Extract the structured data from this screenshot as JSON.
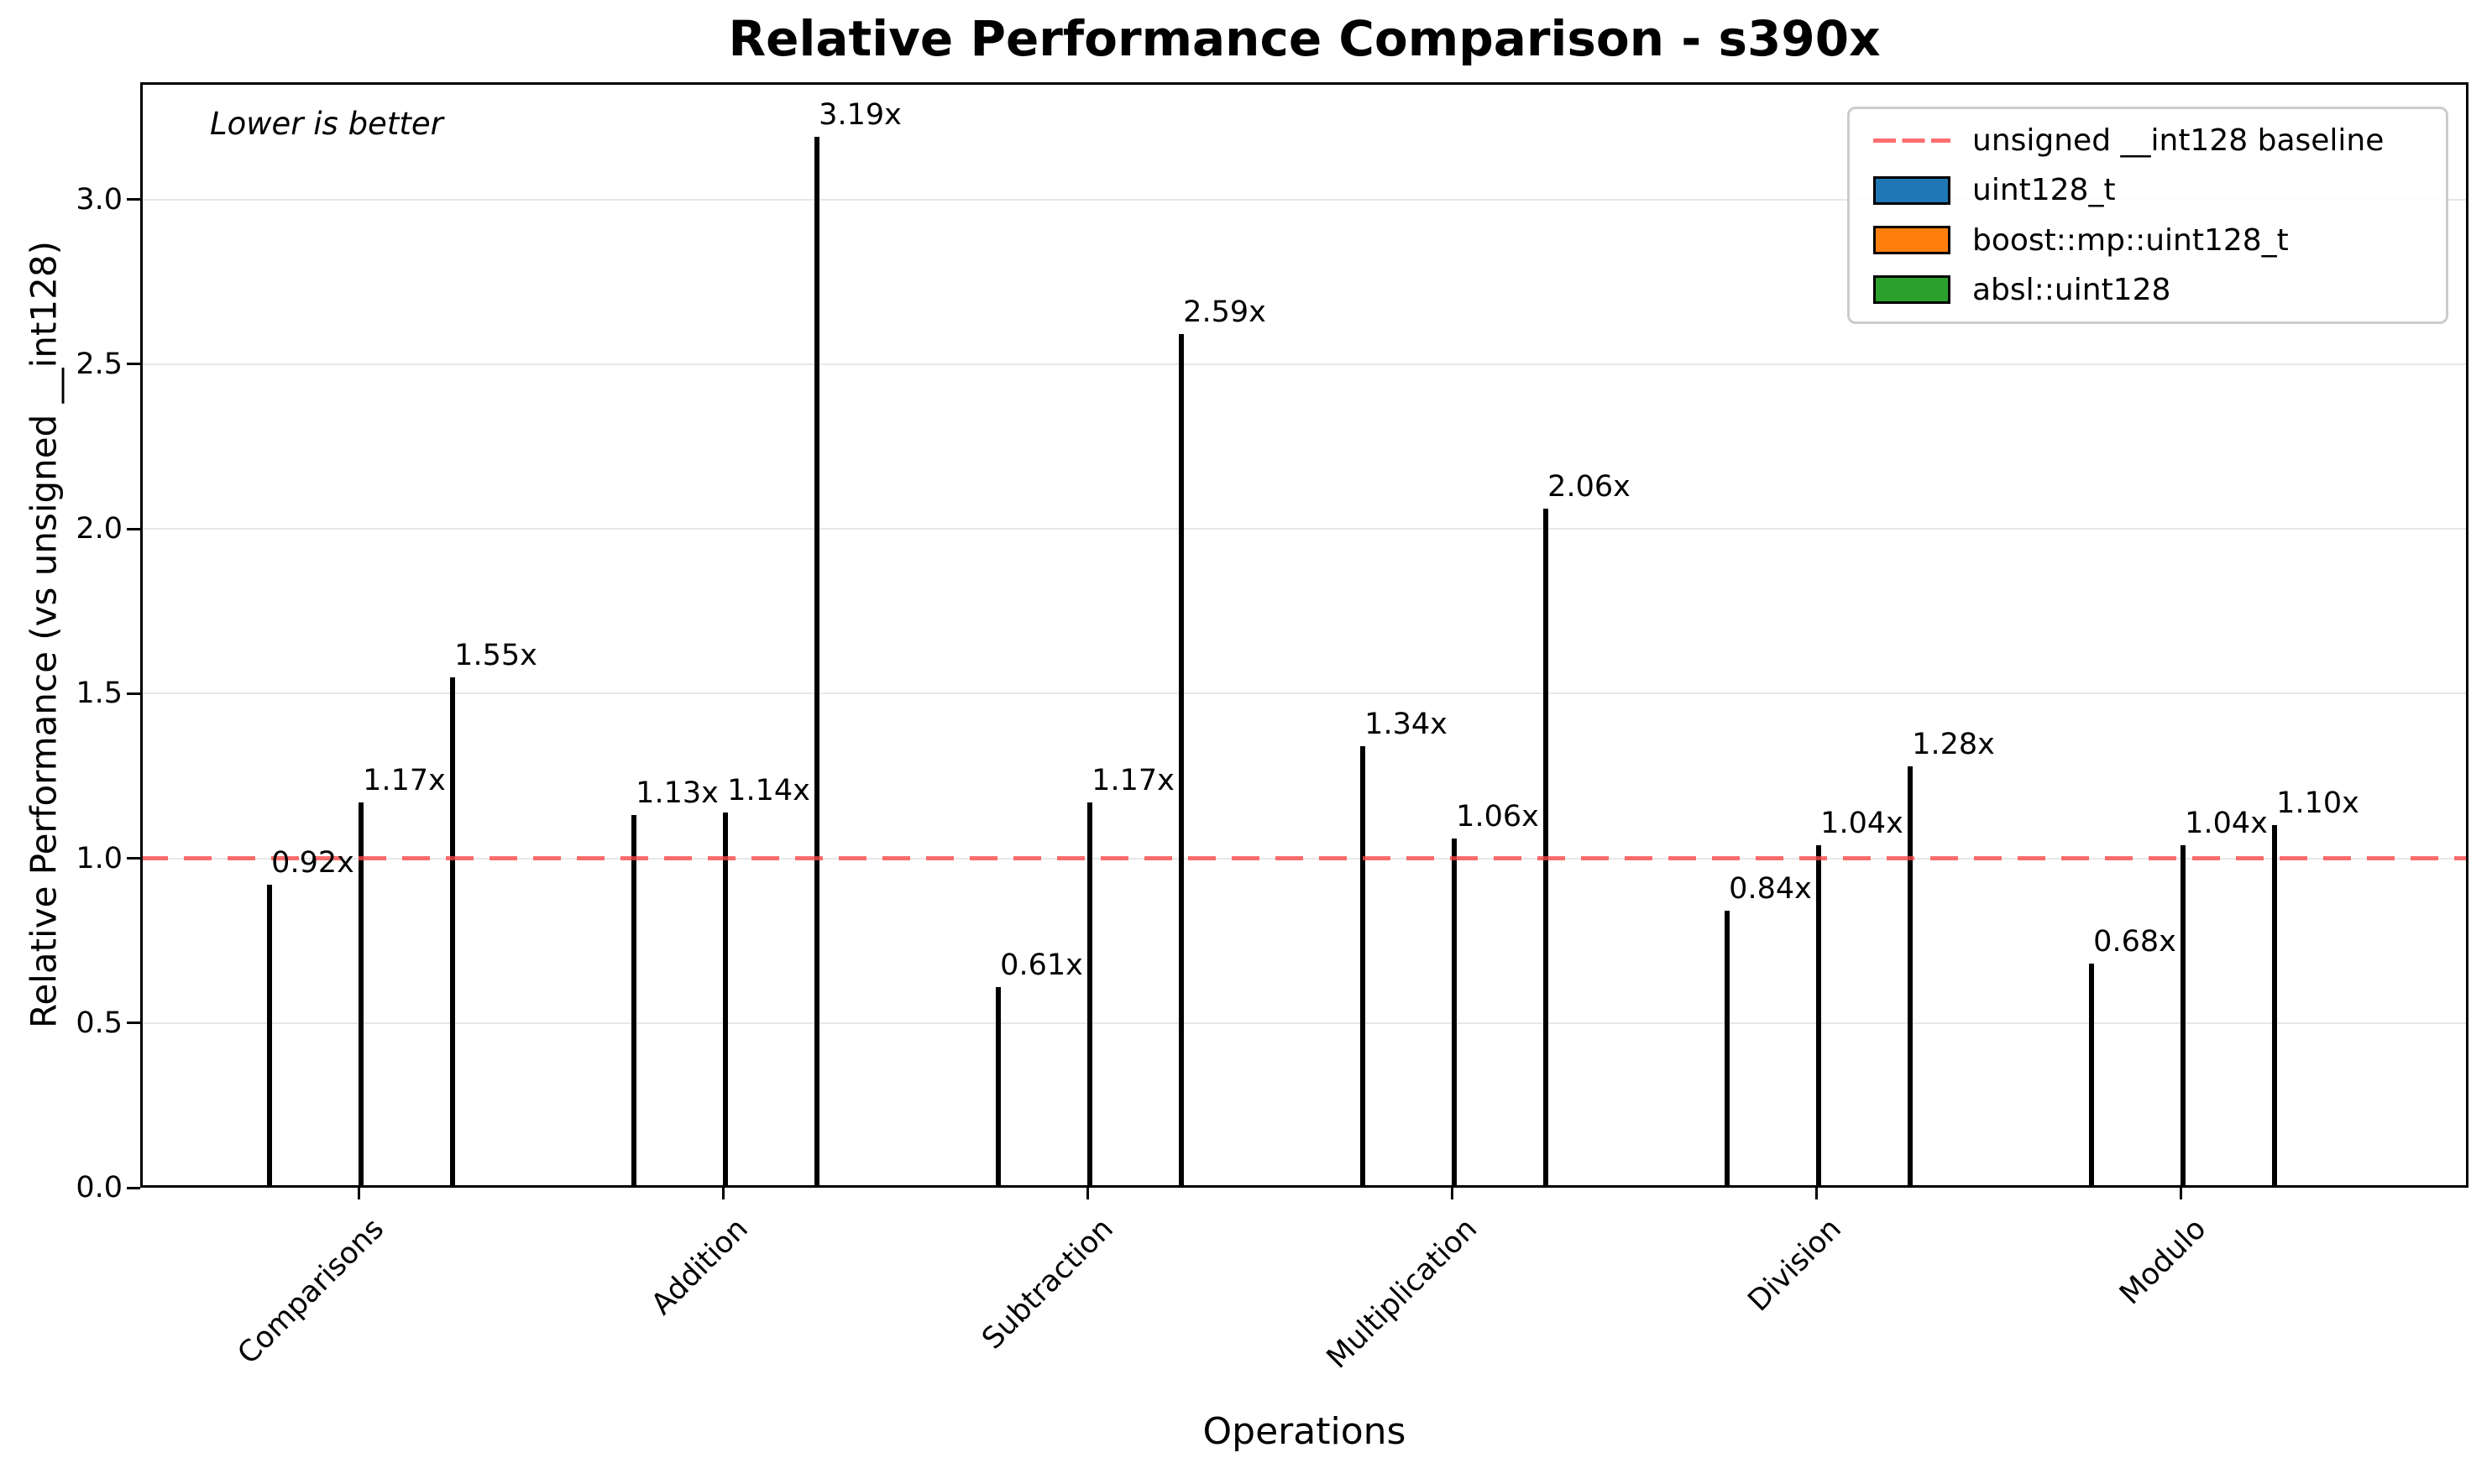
{
  "title": "Relative Performance Comparison - s390x",
  "annotation": "Lower is better",
  "axes": {
    "x_label": "Operations",
    "y_label": "Relative Performance (vs unsigned __int128)",
    "y_tick_labels": [
      "0.0",
      "0.5",
      "1.0",
      "1.5",
      "2.0",
      "2.5",
      "3.0"
    ]
  },
  "chart_data": {
    "type": "bar",
    "title": "Relative Performance Comparison - s390x",
    "xlabel": "Operations",
    "ylabel": "Relative Performance (vs unsigned __int128)",
    "annotation": "Lower is better",
    "categories": [
      "Comparisons",
      "Addition",
      "Subtraction",
      "Multiplication",
      "Division",
      "Modulo"
    ],
    "series": [
      {
        "name": "uint128_t",
        "color": "#1f77b4",
        "values": [
          0.92,
          1.13,
          0.61,
          1.34,
          0.84,
          0.68
        ],
        "labels": [
          "0.92x",
          "1.13x",
          "0.61x",
          "1.34x",
          "0.84x",
          "0.68x"
        ]
      },
      {
        "name": "boost::mp::uint128_t",
        "color": "#ff7f0e",
        "values": [
          1.17,
          1.14,
          1.17,
          1.06,
          1.04,
          1.04
        ],
        "labels": [
          "1.17x",
          "1.14x",
          "1.17x",
          "1.06x",
          "1.04x",
          "1.04x"
        ]
      },
      {
        "name": "absl::uint128",
        "color": "#2ca02c",
        "values": [
          1.55,
          3.19,
          2.59,
          2.06,
          1.28,
          1.1
        ],
        "labels": [
          "1.55x",
          "3.19x",
          "2.59x",
          "2.06x",
          "1.28x",
          "1.10x"
        ]
      }
    ],
    "baseline": {
      "value": 1.0,
      "label": "unsigned __int128 baseline",
      "color": "rgba(250,70,70,0.78)"
    },
    "ylim": [
      0,
      3.35
    ],
    "ytick_step": 0.5,
    "bar_edge_color": "#000000",
    "grid": true,
    "gridline_color": "#e7e7e7",
    "legend_position": "upper right"
  }
}
